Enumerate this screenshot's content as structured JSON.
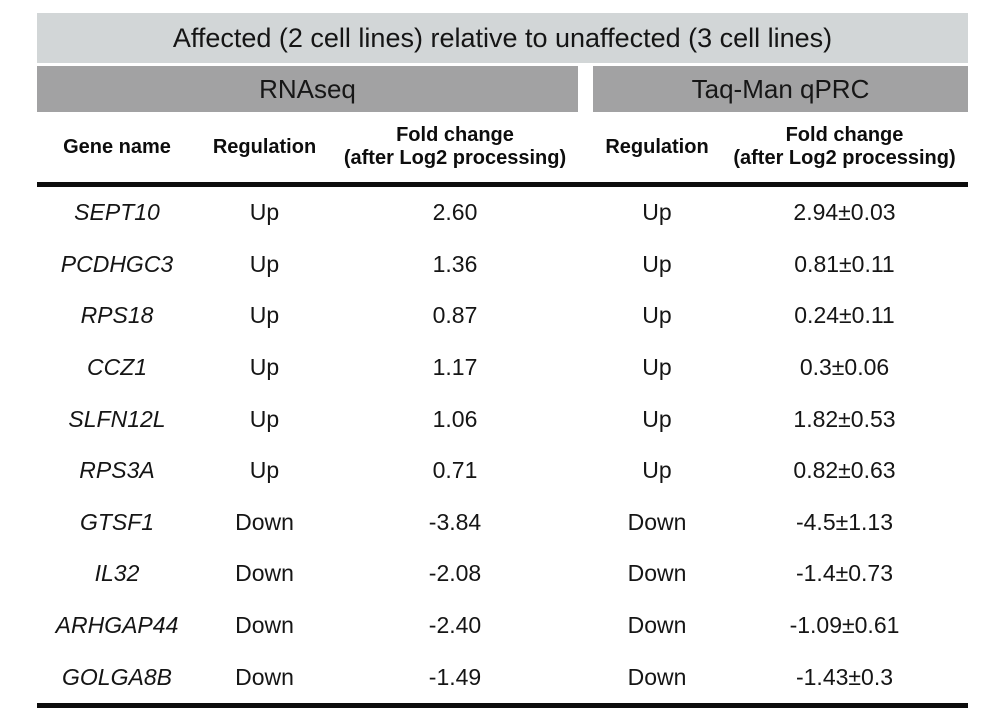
{
  "table": {
    "title": "Affected (2 cell lines) relative to unaffected (3 cell lines)",
    "sections": {
      "rnaseq_label": "RNAseq",
      "qpcr_label": "Taq-Man qPRC"
    },
    "columns": {
      "gene": "Gene name",
      "regulation_rnaseq": "Regulation",
      "fold_rnaseq_line1": "Fold change",
      "fold_rnaseq_line2": "(after Log2 processing)",
      "regulation_qpcr": "Regulation",
      "fold_qpcr_line1": "Fold change",
      "fold_qpcr_line2": "(after Log2 processing)"
    },
    "rows": [
      {
        "gene": "SEPT10",
        "rnaseq_regulation": "Up",
        "rnaseq_fold": "2.60",
        "qpcr_regulation": "Up",
        "qpcr_fold": "2.94±0.03"
      },
      {
        "gene": "PCDHGC3",
        "rnaseq_regulation": "Up",
        "rnaseq_fold": "1.36",
        "qpcr_regulation": "Up",
        "qpcr_fold": "0.81±0.11"
      },
      {
        "gene": "RPS18",
        "rnaseq_regulation": "Up",
        "rnaseq_fold": "0.87",
        "qpcr_regulation": "Up",
        "qpcr_fold": "0.24±0.11"
      },
      {
        "gene": "CCZ1",
        "rnaseq_regulation": "Up",
        "rnaseq_fold": "1.17",
        "qpcr_regulation": "Up",
        "qpcr_fold": "0.3±0.06"
      },
      {
        "gene": "SLFN12L",
        "rnaseq_regulation": "Up",
        "rnaseq_fold": "1.06",
        "qpcr_regulation": "Up",
        "qpcr_fold": "1.82±0.53"
      },
      {
        "gene": "RPS3A",
        "rnaseq_regulation": "Up",
        "rnaseq_fold": "0.71",
        "qpcr_regulation": "Up",
        "qpcr_fold": "0.82±0.63"
      },
      {
        "gene": "GTSF1",
        "rnaseq_regulation": "Down",
        "rnaseq_fold": "-3.84",
        "qpcr_regulation": "Down",
        "qpcr_fold": "-4.5±1.13"
      },
      {
        "gene": "IL32",
        "rnaseq_regulation": "Down",
        "rnaseq_fold": "-2.08",
        "qpcr_regulation": "Down",
        "qpcr_fold": "-1.4±0.73"
      },
      {
        "gene": "ARHGAP44",
        "rnaseq_regulation": "Down",
        "rnaseq_fold": "-2.40",
        "qpcr_regulation": "Down",
        "qpcr_fold": "-1.09±0.61"
      },
      {
        "gene": "GOLGA8B",
        "rnaseq_regulation": "Down",
        "rnaseq_fold": "-1.49",
        "qpcr_regulation": "Down",
        "qpcr_fold": "-1.43±0.3"
      }
    ]
  },
  "colors": {
    "title_band_bg": "#d2d6d7",
    "subheader_bg": "#a2a2a3",
    "rule": "#0d0d0d",
    "text": "#151515"
  }
}
